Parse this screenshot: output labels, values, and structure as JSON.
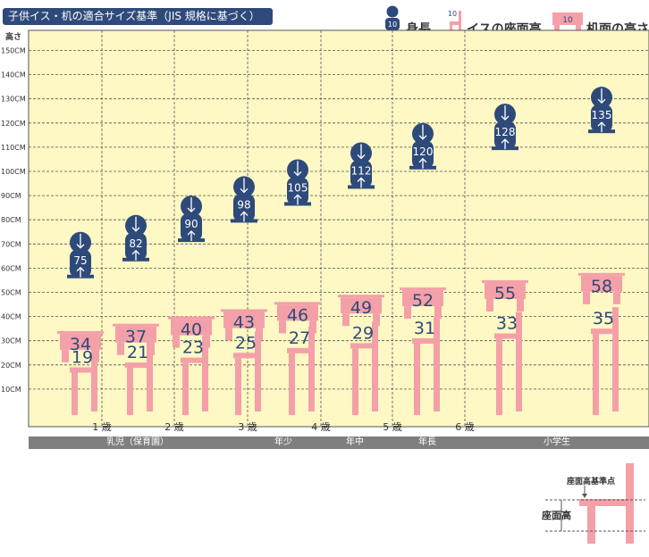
{
  "title": "子供イス・机の適合サイズ基準（JIS 規格に基づく）",
  "legend": {
    "height": "身長",
    "seat": "イスの座面高",
    "desk": "机面の高さ",
    "icon_number": "10"
  },
  "colors": {
    "navy": "#2e4a7a",
    "pink": "#f4a0a8",
    "plot_bg": "#fdf8c4",
    "grid": "#555555"
  },
  "periods": [
    "乳児（保育園）",
    "年少",
    "年中",
    "年長",
    "小学生"
  ],
  "diagram": {
    "reference": "座面高基準点",
    "label": "座面高"
  },
  "chart_data": {
    "type": "scatter",
    "ylabel": "高さ",
    "ylim": [
      0,
      160
    ],
    "yticks": [
      10,
      20,
      30,
      40,
      50,
      60,
      70,
      80,
      90,
      100,
      110,
      120,
      130,
      140,
      150
    ],
    "ytick_labels": [
      "10CM",
      "20CM",
      "30CM",
      "40CM",
      "50CM",
      "60CM",
      "70CM",
      "80CM",
      "90CM",
      "100CM",
      "110CM",
      "120CM",
      "130CM",
      "140CM",
      "150CM"
    ],
    "xtick_labels": [
      "1 歳",
      "2 歳",
      "3 歳",
      "4 歳",
      "5 歳",
      "6 歳"
    ],
    "grid": true,
    "series": [
      {
        "name": "身長",
        "values": [
          75,
          82,
          90,
          98,
          105,
          112,
          120,
          128,
          135
        ]
      },
      {
        "name": "机面の高さ",
        "values": [
          34,
          37,
          40,
          43,
          46,
          49,
          52,
          55,
          58
        ]
      },
      {
        "name": "イスの座面高",
        "values": [
          19,
          21,
          23,
          25,
          27,
          29,
          31,
          33,
          35
        ]
      }
    ]
  }
}
